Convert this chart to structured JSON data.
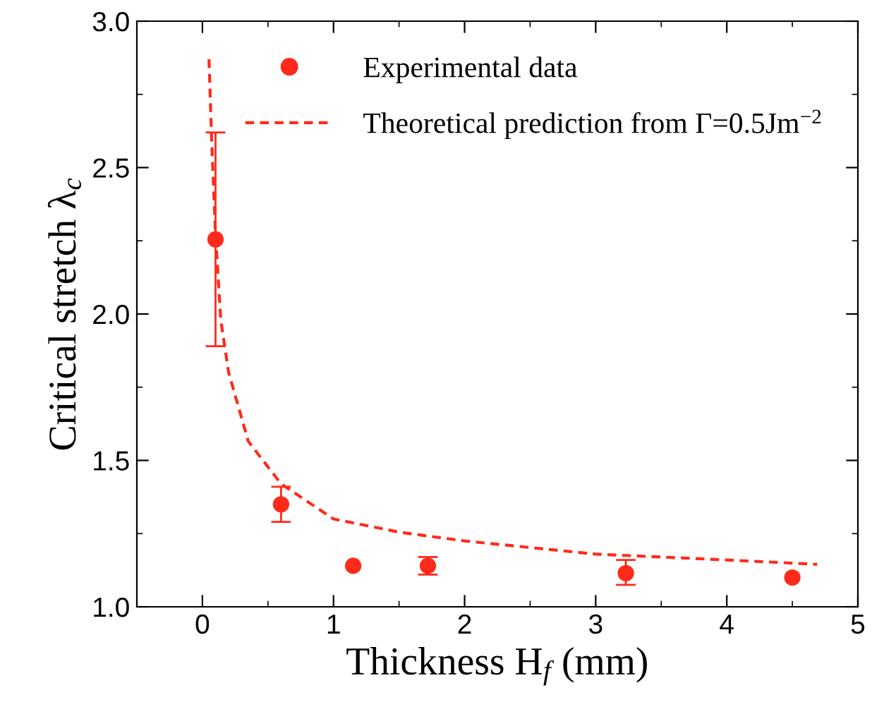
{
  "chart_data": {
    "type": "scatter",
    "xlabel": "Thickness H$_{f}$ (mm)",
    "ylabel": "Critical stretch λ$_{c}$",
    "xlim": [
      -0.5,
      5
    ],
    "xticks": [
      0,
      1,
      2,
      3,
      4,
      5
    ],
    "ylim": [
      1.0,
      3.0
    ],
    "yticks": [
      {
        "value": 1.0,
        "label": "1.0"
      },
      {
        "value": 1.5,
        "label": "1.5"
      },
      {
        "value": 2.0,
        "label": "2.0"
      },
      {
        "value": 2.5,
        "label": "2.5"
      },
      {
        "value": 3.0,
        "label": "3.0"
      }
    ],
    "grid": false,
    "legend": "top right",
    "series": [
      {
        "name": "Experimental data",
        "type": "scatter",
        "color": "#ff2a1a",
        "marker": "circle",
        "x": [
          0.1,
          0.6,
          1.15,
          1.72,
          3.23,
          4.5
        ],
        "values": [
          2.255,
          1.35,
          1.14,
          1.14,
          1.115,
          1.1
        ],
        "errors": [
          [
            1.89,
            2.62
          ],
          [
            1.29,
            1.41
          ],
          null,
          [
            1.11,
            1.17
          ],
          [
            1.075,
            1.16
          ],
          null
        ]
      },
      {
        "name": "Theoretical prediction from Γ=0.5Jm$^{−2}$",
        "type": "line",
        "color": "#ff2a1a",
        "line_style": "dashed",
        "marker": "none",
        "x": [
          0.05,
          0.07,
          0.1,
          0.14,
          0.2,
          0.35,
          0.6,
          1.0,
          1.5,
          2.0,
          3.0,
          4.0,
          4.69
        ],
        "values": [
          2.87,
          2.6,
          2.27,
          1.98,
          1.8,
          1.565,
          1.42,
          1.3,
          1.255,
          1.225,
          1.18,
          1.16,
          1.145
        ]
      }
    ]
  }
}
